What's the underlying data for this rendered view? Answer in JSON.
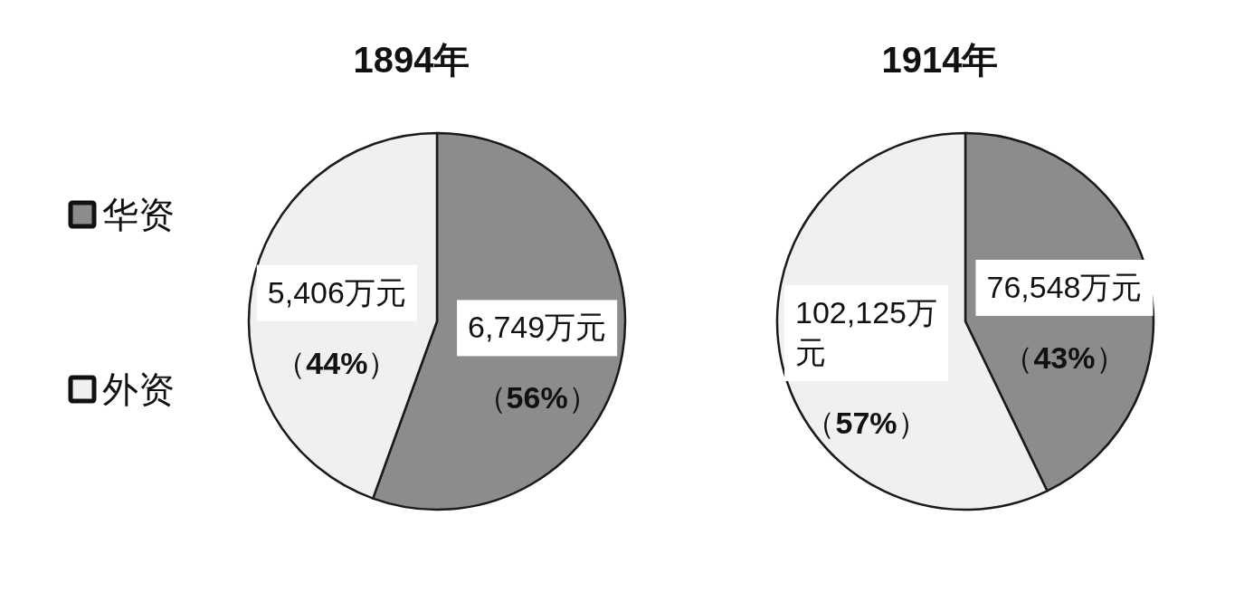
{
  "chart_data": [
    {
      "type": "pie",
      "title": "1894年",
      "categories": [
        "华资",
        "外资"
      ],
      "values": [
        6749,
        5406
      ],
      "colors": [
        "#8c8c8c",
        "#f0f0f0"
      ],
      "value_labels": [
        "6,749万元",
        "5,406万元"
      ],
      "annotations": [
        {
          "text": "（56%）",
          "x": "华资"
        },
        {
          "text": "（44%）",
          "x": "外资"
        }
      ],
      "legend": "left"
    },
    {
      "type": "pie",
      "title": "1914年",
      "categories": [
        null,
        null
      ],
      "values": [
        76548,
        102125
      ],
      "colors": [
        "#8c8c8c",
        "#f0f0f0"
      ],
      "value_labels": [
        "76,548万元",
        "102,125万元"
      ],
      "annotations": [
        "（43%）",
        "（57%）"
      ]
    }
  ]
}
